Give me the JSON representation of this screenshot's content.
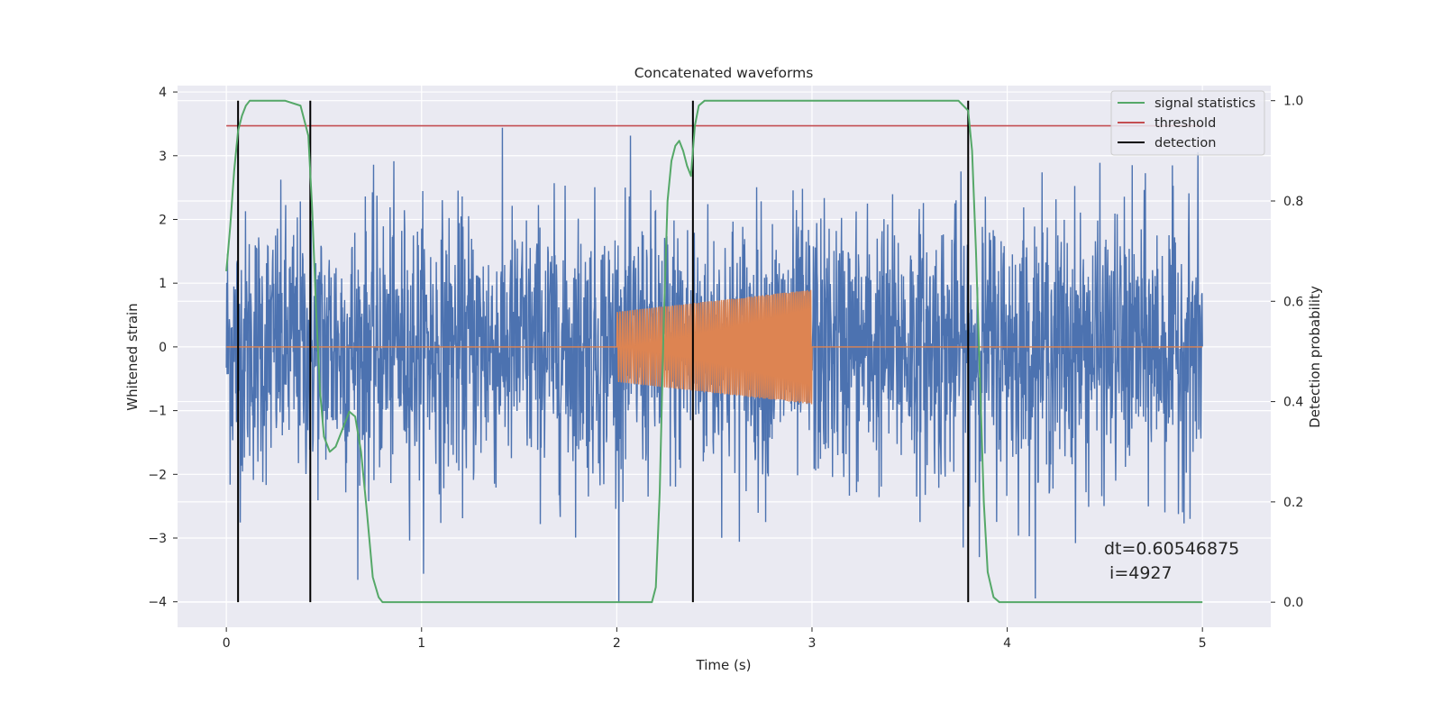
{
  "chart_data": {
    "type": "line",
    "title": "Concatenated waveforms",
    "xlabel": "Time (s)",
    "ylabel_left": "Whitened strain",
    "ylabel_right": "Detection probability",
    "xlim": [
      -0.25,
      5.35
    ],
    "ylim_left": [
      -4.4,
      4.1
    ],
    "ylim_right": [
      -0.05,
      1.03
    ],
    "x_ticks": [
      0,
      1,
      2,
      3,
      4,
      5
    ],
    "x_tick_labels": [
      "0",
      "1",
      "2",
      "3",
      "4",
      "5"
    ],
    "y_left_ticks": [
      4,
      3,
      2,
      1,
      0,
      -1,
      -2,
      -3,
      -4
    ],
    "y_left_tick_labels": [
      "4",
      "3",
      "2",
      "1",
      "0",
      "−1",
      "−2",
      "−3",
      "−4"
    ],
    "y_right_ticks": [
      1.0,
      0.8,
      0.6,
      0.4,
      0.2,
      0.0
    ],
    "y_right_tick_labels": [
      "1.0",
      "0.8",
      "0.6",
      "0.4",
      "0.2",
      "0.0"
    ],
    "grid": true,
    "legend_position": "top-right",
    "series": [
      {
        "name": "signal statistics",
        "axis": "right",
        "color": "#55a868",
        "x": [
          0.0,
          0.02,
          0.04,
          0.06,
          0.08,
          0.1,
          0.12,
          0.15,
          0.2,
          0.3,
          0.38,
          0.42,
          0.44,
          0.46,
          0.48,
          0.5,
          0.53,
          0.56,
          0.6,
          0.63,
          0.66,
          0.69,
          0.72,
          0.75,
          0.78,
          0.8,
          1.0,
          1.5,
          2.0,
          2.18,
          2.2,
          2.22,
          2.24,
          2.26,
          2.28,
          2.3,
          2.32,
          2.34,
          2.36,
          2.38,
          2.4,
          2.42,
          2.45,
          2.5,
          3.0,
          3.5,
          3.75,
          3.8,
          3.82,
          3.84,
          3.86,
          3.88,
          3.9,
          3.93,
          3.96,
          4.0,
          4.5,
          5.0
        ],
        "y": [
          0.66,
          0.75,
          0.86,
          0.94,
          0.97,
          0.99,
          1.0,
          1.0,
          1.0,
          1.0,
          0.99,
          0.93,
          0.78,
          0.58,
          0.42,
          0.33,
          0.3,
          0.31,
          0.35,
          0.38,
          0.37,
          0.3,
          0.18,
          0.05,
          0.01,
          0.0,
          0.0,
          0.0,
          0.0,
          0.0,
          0.03,
          0.22,
          0.55,
          0.8,
          0.88,
          0.91,
          0.92,
          0.9,
          0.87,
          0.85,
          0.95,
          0.99,
          1.0,
          1.0,
          1.0,
          1.0,
          1.0,
          0.98,
          0.9,
          0.7,
          0.45,
          0.2,
          0.06,
          0.01,
          0.0,
          0.0,
          0.0,
          0.0
        ]
      },
      {
        "name": "threshold",
        "axis": "right",
        "color": "#c44e52",
        "x": [
          0.0,
          5.0
        ],
        "y": [
          0.95,
          0.95
        ]
      },
      {
        "name": "detection",
        "axis": "right",
        "color": "#000000",
        "type": "vlines",
        "x": [
          0.06,
          0.43,
          2.39,
          3.8
        ],
        "y_range": [
          0.0,
          1.0
        ]
      },
      {
        "name": "",
        "axis": "left",
        "color": "#4c72b0",
        "description_type": "noise",
        "x_range": [
          0.0,
          5.0
        ],
        "samples": 2600,
        "envelope": [
          -4.0,
          3.75
        ]
      },
      {
        "name": "",
        "axis": "left",
        "color": "#dd8452",
        "description_type": "chirp",
        "x": [
          0.0,
          2.0,
          2.0,
          3.0,
          3.0,
          5.0
        ],
        "amplitude": [
          0.0,
          0.0,
          0.55,
          0.9,
          0.0,
          0.0
        ],
        "cycles": 95
      }
    ],
    "annotations": [
      "dt=0.60546875",
      " i=4927"
    ]
  },
  "colors": {
    "background": "#eaeaf2",
    "grid": "#ffffff",
    "text": "#262626"
  }
}
